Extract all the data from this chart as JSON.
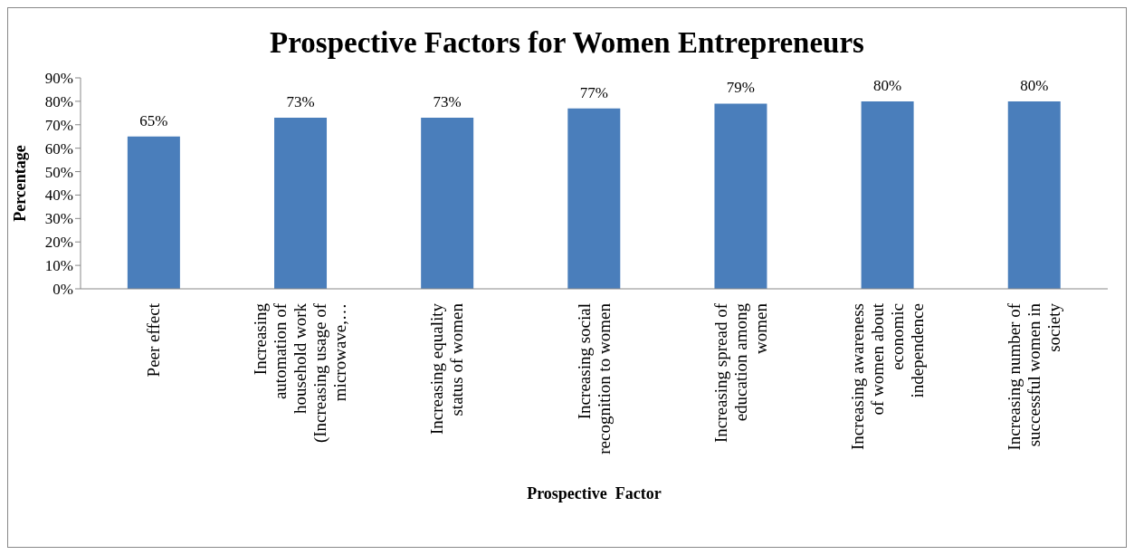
{
  "chart_data": {
    "type": "bar",
    "title": "Prospective Factors for Women Entrepreneurs",
    "xlabel": "Prospective  Factor",
    "ylabel": "Percentage",
    "categories": [
      "Peer effect",
      "Increasing automation of household work (Increasing usage of microwave,…",
      "Increasing equality status of women",
      "Increasing social recognition to women",
      "Increasing spread of education among women",
      "Increasing awareness of women about economic independence",
      "Increasing number of successful women in society"
    ],
    "values": [
      65,
      73,
      73,
      77,
      79,
      80,
      80
    ],
    "value_labels": [
      "65%",
      "73%",
      "73%",
      "77%",
      "79%",
      "80%",
      "80%"
    ],
    "color": "#4a7ebb",
    "ylim": [
      0,
      90
    ],
    "yticks": [
      {
        "value": 0,
        "label": "0%"
      },
      {
        "value": 10,
        "label": "10%"
      },
      {
        "value": 20,
        "label": "20%"
      },
      {
        "value": 30,
        "label": "30%"
      },
      {
        "value": 40,
        "label": "40%"
      },
      {
        "value": 50,
        "label": "50%"
      },
      {
        "value": 60,
        "label": "60%"
      },
      {
        "value": 70,
        "label": "70%"
      },
      {
        "value": 80,
        "label": "80%"
      },
      {
        "value": 90,
        "label": "90%"
      }
    ],
    "grid": false,
    "legend": false
  }
}
